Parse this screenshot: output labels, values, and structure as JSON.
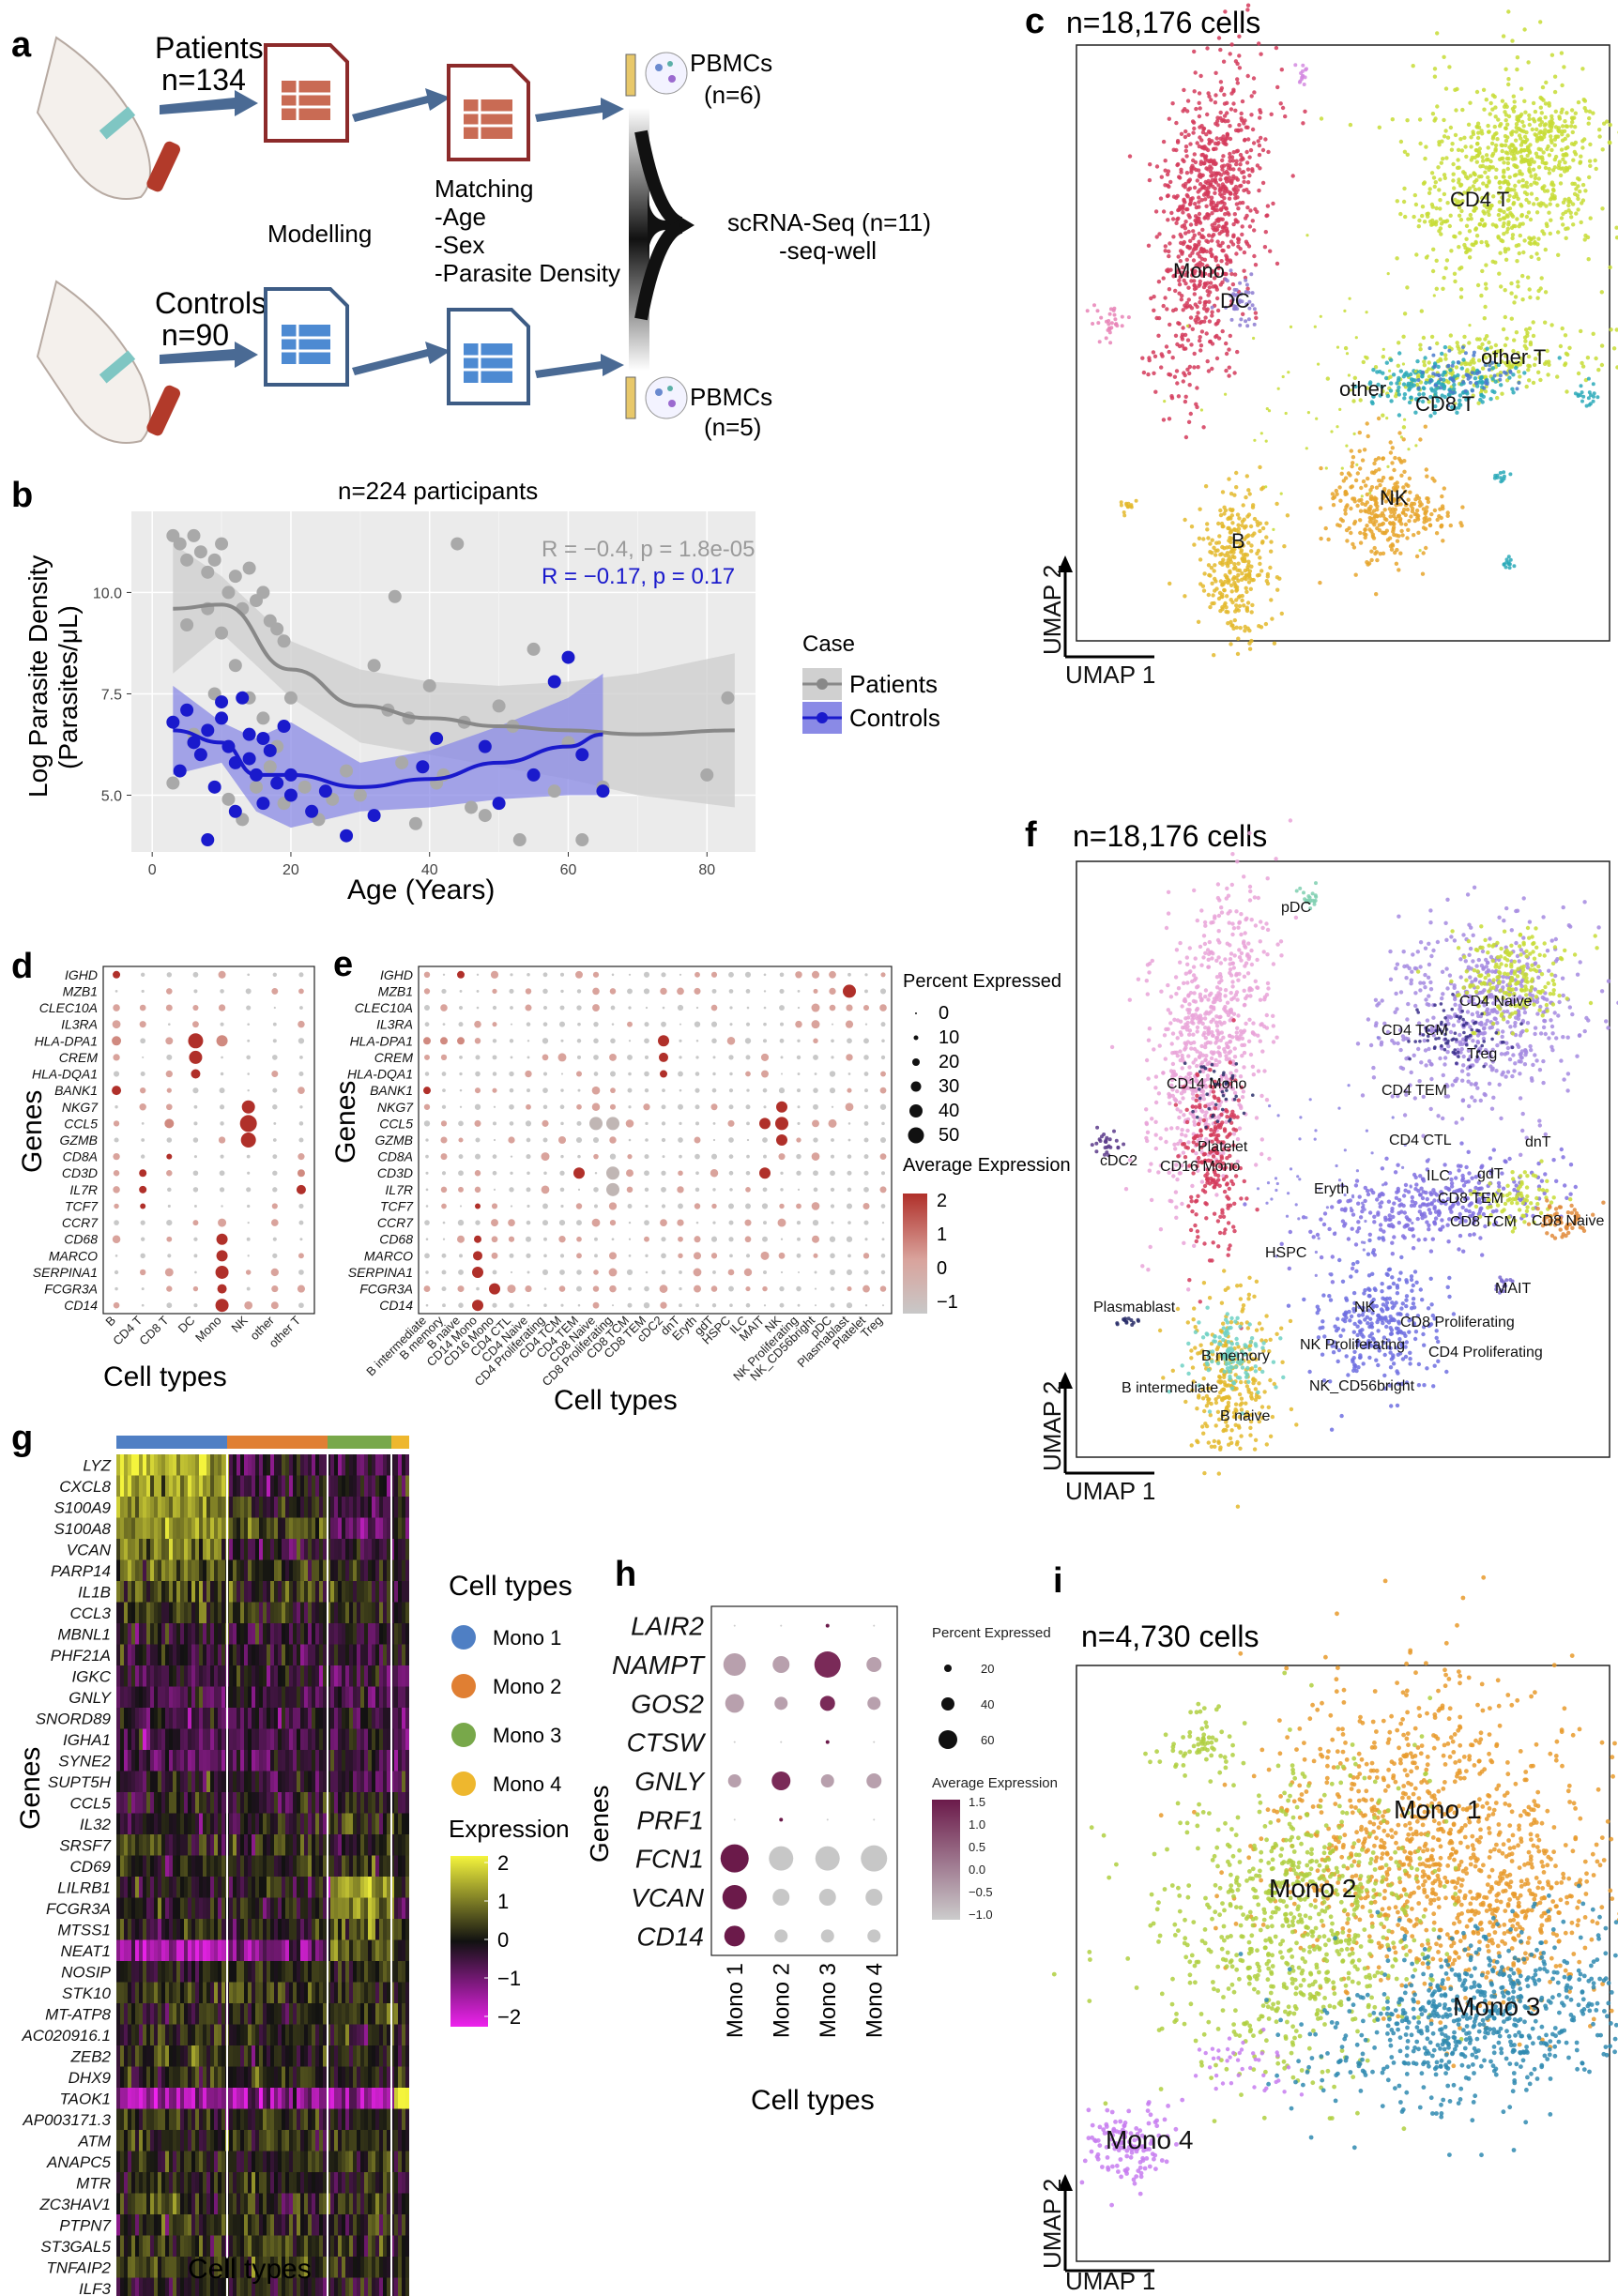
{
  "panel_labels": {
    "a": "a",
    "b": "b",
    "c": "c",
    "d": "d",
    "e": "e",
    "f": "f",
    "g": "g",
    "h": "h",
    "i": "i"
  },
  "colors": {
    "patients_line": "#888888",
    "controls_line": "#1a1acc",
    "patients_band": "#d0d0d0",
    "controls_band": "#8a8ae6",
    "mono1": "#4f7fc4",
    "mono2": "#e07f33",
    "mono3": "#78a84a",
    "mono4": "#eeb72e",
    "hmap_high": "#f4f43c",
    "hmap_mid": "#111111",
    "hmap_low": "#ee22ee",
    "dot_high": "#b0302a",
    "dot_low": "#c8c8c8",
    "h_high": "#6b1a4a",
    "h_low": "#cccccc"
  },
  "panel_a": {
    "patients_label": "Patients",
    "patients_n": "n=134",
    "controls_label": "Controls",
    "controls_n": "n=90",
    "modelling": "Modelling",
    "matching": [
      "Matching",
      "-Age",
      "-Sex",
      "-Parasite Density"
    ],
    "pbmc_top": "PBMCs",
    "pbmc_top_n": "(n=6)",
    "pbmc_bot": "PBMCs",
    "pbmc_bot_n": "(n=5)",
    "scrna": "scRNA-Seq (n=11)",
    "seqwell": "-seq-well"
  },
  "panel_b": {
    "title": "n=224 participants",
    "ylabel1": "Log Parasite Density",
    "ylabel2": "(Parasites/μL)",
    "xlabel": "Age (Years)",
    "legend_title": "Case",
    "legend_items": [
      "Patients",
      "Controls"
    ],
    "stat_patients": "R = −0.4, p = 1.8e-05",
    "stat_controls": "R = −0.17, p = 0.17",
    "yticks": [
      "5.0",
      "7.5",
      "10.0"
    ],
    "xticks": [
      "0",
      "20",
      "40",
      "60",
      "80"
    ]
  },
  "chart_data": [
    {
      "type": "scatter",
      "title": "n=224 participants",
      "xlabel": "Age (Years)",
      "ylabel": "Log Parasite Density (Parasites/μL)",
      "xlim": [
        -3,
        87
      ],
      "ylim": [
        3.6,
        12.0
      ],
      "series": [
        {
          "name": "Patients",
          "points": [
            [
              3,
              11.4
            ],
            [
              4,
              11.2
            ],
            [
              5,
              10.8
            ],
            [
              6,
              11.4
            ],
            [
              7,
              11.0
            ],
            [
              8,
              10.5
            ],
            [
              9,
              10.8
            ],
            [
              10,
              11.2
            ],
            [
              11,
              10.0
            ],
            [
              12,
              10.4
            ],
            [
              13,
              9.6
            ],
            [
              14,
              10.6
            ],
            [
              15,
              9.8
            ],
            [
              16,
              10.0
            ],
            [
              17,
              9.3
            ],
            [
              18,
              9.1
            ],
            [
              19,
              8.8
            ],
            [
              20,
              7.4
            ],
            [
              5,
              9.2
            ],
            [
              8,
              9.6
            ],
            [
              10,
              9.0
            ],
            [
              12,
              8.2
            ],
            [
              14,
              7.4
            ],
            [
              16,
              6.9
            ],
            [
              18,
              6.2
            ],
            [
              3,
              5.3
            ],
            [
              6,
              6.5
            ],
            [
              9,
              7.5
            ],
            [
              11,
              4.9
            ],
            [
              13,
              4.4
            ],
            [
              15,
              5.2
            ],
            [
              17,
              5.7
            ],
            [
              19,
              4.8
            ],
            [
              22,
              5.2
            ],
            [
              24,
              4.4
            ],
            [
              26,
              4.9
            ],
            [
              28,
              5.6
            ],
            [
              30,
              5.0
            ],
            [
              32,
              8.2
            ],
            [
              34,
              7.1
            ],
            [
              36,
              5.8
            ],
            [
              38,
              4.3
            ],
            [
              40,
              7.7
            ],
            [
              42,
              5.5
            ],
            [
              44,
              11.2
            ],
            [
              45,
              6.8
            ],
            [
              48,
              4.5
            ],
            [
              50,
              7.2
            ],
            [
              52,
              6.7
            ],
            [
              55,
              8.6
            ],
            [
              58,
              5.1
            ],
            [
              60,
              6.3
            ],
            [
              62,
              3.9
            ],
            [
              65,
              5.2
            ],
            [
              80,
              5.5
            ],
            [
              83,
              7.4
            ],
            [
              35,
              9.9
            ],
            [
              37,
              6.9
            ],
            [
              41,
              5.3
            ],
            [
              46,
              4.7
            ],
            [
              53,
              3.9
            ]
          ]
        },
        {
          "name": "Controls",
          "points": [
            [
              3,
              6.8
            ],
            [
              4,
              5.6
            ],
            [
              5,
              7.1
            ],
            [
              6,
              6.3
            ],
            [
              7,
              6.0
            ],
            [
              8,
              6.6
            ],
            [
              9,
              5.2
            ],
            [
              10,
              6.9
            ],
            [
              11,
              6.2
            ],
            [
              12,
              5.8
            ],
            [
              13,
              7.4
            ],
            [
              14,
              6.5
            ],
            [
              15,
              5.5
            ],
            [
              16,
              4.8
            ],
            [
              17,
              6.1
            ],
            [
              18,
              5.3
            ],
            [
              19,
              6.7
            ],
            [
              20,
              5.0
            ],
            [
              8,
              3.9
            ],
            [
              10,
              7.3
            ],
            [
              12,
              4.6
            ],
            [
              14,
              5.9
            ],
            [
              16,
              6.4
            ],
            [
              20,
              5.5
            ],
            [
              23,
              4.6
            ],
            [
              25,
              5.1
            ],
            [
              28,
              4.0
            ],
            [
              32,
              4.5
            ],
            [
              39,
              5.7
            ],
            [
              41,
              6.4
            ],
            [
              48,
              6.2
            ],
            [
              50,
              4.8
            ],
            [
              55,
              5.5
            ],
            [
              58,
              7.8
            ],
            [
              60,
              8.4
            ],
            [
              62,
              6.0
            ],
            [
              65,
              5.1
            ]
          ]
        }
      ],
      "fits": [
        {
          "name": "Patients",
          "x": [
            3,
            10,
            20,
            30,
            40,
            50,
            60,
            70,
            84
          ],
          "y": [
            9.6,
            9.7,
            8.1,
            7.2,
            6.9,
            6.7,
            6.6,
            6.5,
            6.6
          ]
        },
        {
          "name": "Controls",
          "x": [
            3,
            10,
            15,
            20,
            30,
            40,
            50,
            60,
            65
          ],
          "y": [
            6.6,
            6.3,
            5.5,
            5.5,
            5.2,
            5.4,
            5.8,
            6.2,
            6.5
          ]
        }
      ]
    },
    {
      "type": "scatter",
      "title": "n=18,176 cells",
      "xlabel": "UMAP 1",
      "ylabel": "UMAP 2",
      "clusters": [
        "Mono",
        "DC",
        "CD4 T",
        "other T",
        "other",
        "CD8 T",
        "NK",
        "B"
      ]
    },
    {
      "type": "scatter",
      "title": "n=18,176 cells",
      "xlabel": "UMAP 1",
      "ylabel": "UMAP 2",
      "clusters": [
        "pDC",
        "CD4 Naive",
        "CD4 TCM",
        "Treg",
        "CD14 Mono",
        "CD4 TEM",
        "Platelet",
        "cDC2",
        "CD16 Mono",
        "CD4 CTL",
        "dnT",
        "ILC",
        "gdT",
        "Eryth",
        "CD8 TEM",
        "CD8 Naive",
        "CD8 TCM",
        "HSPC",
        "MAIT",
        "Plasmablast",
        "NK",
        "CD8 Proliferating",
        "B memory",
        "NK Proliferating",
        "CD4 Proliferating",
        "B intermediate",
        "NK_CD56bright",
        "B naive"
      ]
    },
    {
      "type": "scatter",
      "title": "n=4,730 cells",
      "xlabel": "UMAP 1",
      "ylabel": "UMAP 2",
      "clusters": [
        "Mono 1",
        "Mono 2",
        "Mono 3",
        "Mono 4"
      ]
    },
    {
      "type": "heatmap",
      "xlabel": "Cell types",
      "ylabel": "Genes",
      "groups": [
        "Mono 1",
        "Mono 2",
        "Mono 3",
        "Mono 4"
      ],
      "genes": [
        "LYZ",
        "CXCL8",
        "S100A9",
        "S100A8",
        "VCAN",
        "PARP14",
        "IL1B",
        "CCL3",
        "MBNL1",
        "PHF21A",
        "IGKC",
        "GNLY",
        "SNORD89",
        "IGHA1",
        "SYNE2",
        "SUPT5H",
        "CCL5",
        "IL32",
        "SRSF7",
        "CD69",
        "LILRB1",
        "FCGR3A",
        "MTSS1",
        "NEAT1",
        "NOSIP",
        "STK10",
        "MT-ATP8",
        "AC020916.1",
        "ZEB2",
        "DHX9",
        "TAOK1",
        "AP003171.3",
        "ATM",
        "ANAPC5",
        "MTR",
        "ZC3HAV1",
        "PTPN7",
        "ST3GAL5",
        "TNFAIP2",
        "ILF3"
      ],
      "legend_title": "Expression",
      "legend_ticks": [
        "2",
        "1",
        "0",
        "−1",
        "−2"
      ]
    }
  ],
  "panel_c": {
    "title": "n=18,176 cells",
    "x_axis": "UMAP 1",
    "y_axis": "UMAP 2",
    "labels": [
      "Mono",
      "DC",
      "CD4 T",
      "other T",
      "other",
      "CD8 T",
      "NK",
      "B"
    ]
  },
  "panel_d": {
    "ylabel": "Genes",
    "xlabel": "Cell types",
    "genes": [
      "IGHD",
      "MZB1",
      "CLEC10A",
      "IL3RA",
      "HLA-DPA1",
      "CREM",
      "HLA-DQA1",
      "BANK1",
      "NKG7",
      "CCL5",
      "GZMB",
      "CD8A",
      "CD3D",
      "IL7R",
      "TCF7",
      "CCR7",
      "CD68",
      "MARCO",
      "SERPINA1",
      "FCGR3A",
      "CD14"
    ],
    "cells": [
      "B",
      "CD4 T",
      "CD8 T",
      "DC",
      "Mono",
      "NK",
      "other",
      "other T"
    ]
  },
  "panel_e": {
    "ylabel": "Genes",
    "xlabel": "Cell types",
    "genes": [
      "IGHD",
      "MZB1",
      "CLEC10A",
      "IL3RA",
      "HLA-DPA1",
      "CREM",
      "HLA-DQA1",
      "BANK1",
      "NKG7",
      "CCL5",
      "GZMB",
      "CD8A",
      "CD3D",
      "IL7R",
      "TCF7",
      "CCR7",
      "CD68",
      "MARCO",
      "SERPINA1",
      "FCGR3A",
      "CD14"
    ],
    "cells": [
      "B intermediate",
      "B memory",
      "B naive",
      "CD14 Mono",
      "CD16 Mono",
      "CD4 CTL",
      "CD4 Naive",
      "CD4 Proliferating",
      "CD4 TCM",
      "CD4 TEM",
      "CD8 Naive",
      "CD8 Proliferating",
      "CD8 TCM",
      "CD8 TEM",
      "cDC2",
      "dnT",
      "Eryth",
      "gdT",
      "HSPC",
      "ILC",
      "MAIT",
      "NK",
      "NK Proliferating",
      "NK_CD56bright",
      "pDC",
      "Plasmablast",
      "Platelet",
      "Treg"
    ],
    "pct_title": "Percent Expressed",
    "pct_ticks": [
      "0",
      "10",
      "20",
      "30",
      "40",
      "50"
    ],
    "avg_title": "Average Expression",
    "avg_ticks": [
      "2",
      "1",
      "0",
      "−1"
    ]
  },
  "panel_f": {
    "title": "n=18,176 cells",
    "x_axis": "UMAP 1",
    "y_axis": "UMAP 2"
  },
  "panel_g": {
    "ylabel": "Genes",
    "xlabel": "Cell types",
    "legend_title": "Cell types",
    "legend_items": [
      "Mono 1",
      "Mono 2",
      "Mono 3",
      "Mono 4"
    ],
    "expr_title": "Expression",
    "expr_ticks": [
      "2",
      "1",
      "0",
      "−1",
      "−2"
    ]
  },
  "panel_h": {
    "ylabel": "Genes",
    "xlabel": "Cell types",
    "genes": [
      "LAIR2",
      "NAMPT",
      "GOS2",
      "CTSW",
      "GNLY",
      "PRF1",
      "FCN1",
      "VCAN",
      "CD14"
    ],
    "cells": [
      "Mono 1",
      "Mono 2",
      "Mono 3",
      "Mono 4"
    ],
    "pct_title": "Percent Expressed",
    "pct_ticks": [
      "20",
      "40",
      "60"
    ],
    "avg_title": "Average Expression",
    "avg_ticks": [
      "1.5",
      "1.0",
      "0.5",
      "0.0",
      "−0.5",
      "−1.0"
    ]
  },
  "panel_i": {
    "title": "n=4,730 cells",
    "x_axis": "UMAP 1",
    "y_axis": "UMAP 2",
    "labels": [
      "Mono 1",
      "Mono 2",
      "Mono 3",
      "Mono 4"
    ]
  }
}
